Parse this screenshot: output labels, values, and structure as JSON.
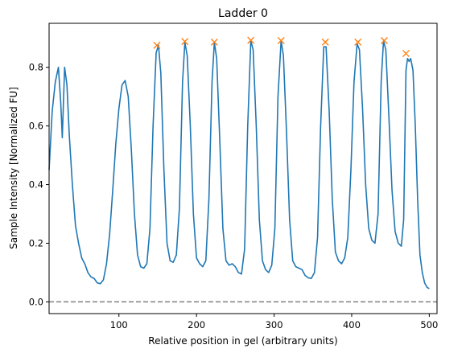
{
  "chart_data": {
    "type": "line",
    "title": "Ladder 0",
    "xlabel": "Relative position in gel (arbitrary units)",
    "ylabel": "Sample Intensity [Normalized FU]",
    "xlim": [
      10,
      510
    ],
    "ylim": [
      -0.04,
      0.95
    ],
    "x_ticks": [
      100,
      200,
      300,
      400,
      500
    ],
    "x_tick_labels": [
      "100",
      "200",
      "300",
      "400",
      "500"
    ],
    "y_ticks": [
      0.0,
      0.2,
      0.4,
      0.6,
      0.8
    ],
    "y_tick_labels": [
      "0.0",
      "0.2",
      "0.4",
      "0.6",
      "0.8"
    ],
    "grid": false,
    "series": [
      {
        "color": "#1f77b4",
        "style": "solid",
        "points": [
          [
            10,
            0.45
          ],
          [
            14,
            0.65
          ],
          [
            18,
            0.75
          ],
          [
            22,
            0.8
          ],
          [
            25,
            0.68
          ],
          [
            27,
            0.56
          ],
          [
            30,
            0.8
          ],
          [
            33,
            0.74
          ],
          [
            36,
            0.57
          ],
          [
            40,
            0.4
          ],
          [
            44,
            0.26
          ],
          [
            48,
            0.2
          ],
          [
            52,
            0.15
          ],
          [
            56,
            0.13
          ],
          [
            60,
            0.1
          ],
          [
            64,
            0.085
          ],
          [
            68,
            0.08
          ],
          [
            72,
            0.065
          ],
          [
            76,
            0.062
          ],
          [
            80,
            0.075
          ],
          [
            84,
            0.13
          ],
          [
            88,
            0.23
          ],
          [
            92,
            0.38
          ],
          [
            96,
            0.54
          ],
          [
            100,
            0.66
          ],
          [
            104,
            0.74
          ],
          [
            108,
            0.755
          ],
          [
            112,
            0.7
          ],
          [
            116,
            0.52
          ],
          [
            120,
            0.3
          ],
          [
            124,
            0.16
          ],
          [
            128,
            0.12
          ],
          [
            132,
            0.115
          ],
          [
            136,
            0.13
          ],
          [
            140,
            0.25
          ],
          [
            144,
            0.6
          ],
          [
            148,
            0.85
          ],
          [
            151,
            0.875
          ],
          [
            154,
            0.78
          ],
          [
            158,
            0.45
          ],
          [
            162,
            0.2
          ],
          [
            166,
            0.14
          ],
          [
            170,
            0.135
          ],
          [
            174,
            0.16
          ],
          [
            178,
            0.32
          ],
          [
            182,
            0.75
          ],
          [
            185,
            0.885
          ],
          [
            188,
            0.84
          ],
          [
            192,
            0.6
          ],
          [
            196,
            0.3
          ],
          [
            200,
            0.15
          ],
          [
            204,
            0.13
          ],
          [
            208,
            0.12
          ],
          [
            212,
            0.14
          ],
          [
            216,
            0.35
          ],
          [
            220,
            0.75
          ],
          [
            223,
            0.885
          ],
          [
            226,
            0.83
          ],
          [
            230,
            0.55
          ],
          [
            234,
            0.25
          ],
          [
            238,
            0.14
          ],
          [
            242,
            0.125
          ],
          [
            246,
            0.13
          ],
          [
            250,
            0.12
          ],
          [
            254,
            0.1
          ],
          [
            258,
            0.095
          ],
          [
            262,
            0.18
          ],
          [
            266,
            0.6
          ],
          [
            270,
            0.89
          ],
          [
            273,
            0.86
          ],
          [
            277,
            0.6
          ],
          [
            281,
            0.28
          ],
          [
            285,
            0.14
          ],
          [
            289,
            0.11
          ],
          [
            293,
            0.1
          ],
          [
            297,
            0.125
          ],
          [
            301,
            0.25
          ],
          [
            305,
            0.7
          ],
          [
            309,
            0.89
          ],
          [
            312,
            0.84
          ],
          [
            316,
            0.58
          ],
          [
            320,
            0.28
          ],
          [
            324,
            0.14
          ],
          [
            328,
            0.12
          ],
          [
            332,
            0.115
          ],
          [
            336,
            0.11
          ],
          [
            340,
            0.09
          ],
          [
            344,
            0.082
          ],
          [
            348,
            0.08
          ],
          [
            352,
            0.1
          ],
          [
            356,
            0.22
          ],
          [
            360,
            0.6
          ],
          [
            364,
            0.87
          ],
          [
            367,
            0.87
          ],
          [
            371,
            0.65
          ],
          [
            375,
            0.35
          ],
          [
            379,
            0.17
          ],
          [
            383,
            0.14
          ],
          [
            387,
            0.13
          ],
          [
            391,
            0.15
          ],
          [
            395,
            0.22
          ],
          [
            399,
            0.45
          ],
          [
            403,
            0.75
          ],
          [
            407,
            0.88
          ],
          [
            410,
            0.86
          ],
          [
            414,
            0.66
          ],
          [
            418,
            0.4
          ],
          [
            422,
            0.25
          ],
          [
            426,
            0.21
          ],
          [
            430,
            0.2
          ],
          [
            434,
            0.3
          ],
          [
            438,
            0.75
          ],
          [
            441,
            0.89
          ],
          [
            444,
            0.86
          ],
          [
            448,
            0.63
          ],
          [
            452,
            0.38
          ],
          [
            456,
            0.24
          ],
          [
            460,
            0.2
          ],
          [
            464,
            0.19
          ],
          [
            467,
            0.28
          ],
          [
            470,
            0.79
          ],
          [
            472,
            0.83
          ],
          [
            474,
            0.82
          ],
          [
            476,
            0.83
          ],
          [
            479,
            0.79
          ],
          [
            482,
            0.6
          ],
          [
            485,
            0.35
          ],
          [
            488,
            0.16
          ],
          [
            491,
            0.1
          ],
          [
            494,
            0.065
          ],
          [
            497,
            0.05
          ],
          [
            500,
            0.045
          ]
        ]
      },
      {
        "color": "#808080",
        "style": "dashed",
        "points": [
          [
            10,
            0.0
          ],
          [
            510,
            0.0
          ]
        ]
      }
    ],
    "markers": {
      "symbol": "x",
      "color": "#ff7f0e",
      "points": [
        [
          149,
          0.875
        ],
        [
          185,
          0.888
        ],
        [
          223,
          0.886
        ],
        [
          270,
          0.892
        ],
        [
          309,
          0.891
        ],
        [
          366,
          0.886
        ],
        [
          408,
          0.886
        ],
        [
          442,
          0.891
        ],
        [
          470,
          0.847
        ]
      ]
    }
  }
}
